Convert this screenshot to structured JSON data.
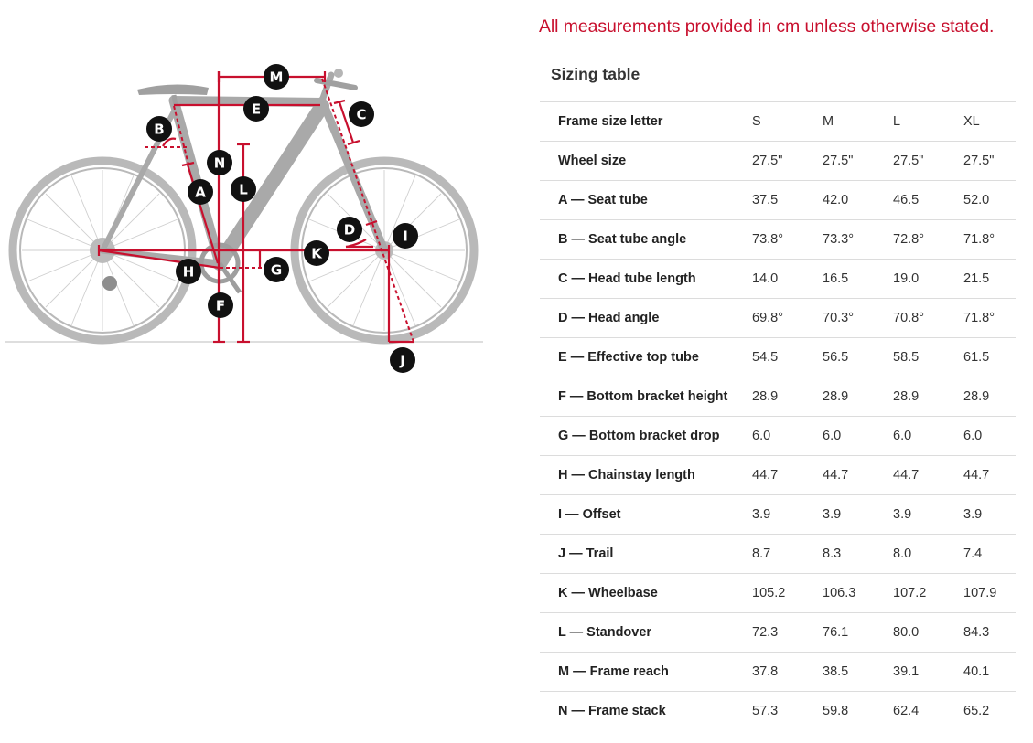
{
  "notice": "All measurements provided in cm unless otherwise stated.",
  "table_title": "Sizing table",
  "columns": [
    "Frame size letter",
    "S",
    "M",
    "L",
    "XL"
  ],
  "rows": [
    {
      "label": "Wheel size",
      "values": [
        "27.5\"",
        "27.5\"",
        "27.5\"",
        "27.5\""
      ]
    },
    {
      "label": "A — Seat tube",
      "values": [
        "37.5",
        "42.0",
        "46.5",
        "52.0"
      ]
    },
    {
      "label": "B — Seat tube angle",
      "values": [
        "73.8°",
        "73.3°",
        "72.8°",
        "71.8°"
      ]
    },
    {
      "label": "C — Head tube length",
      "values": [
        "14.0",
        "16.5",
        "19.0",
        "21.5"
      ]
    },
    {
      "label": "D — Head angle",
      "values": [
        "69.8°",
        "70.3°",
        "70.8°",
        "71.8°"
      ]
    },
    {
      "label": "E — Effective top tube",
      "values": [
        "54.5",
        "56.5",
        "58.5",
        "61.5"
      ]
    },
    {
      "label": "F — Bottom bracket height",
      "values": [
        "28.9",
        "28.9",
        "28.9",
        "28.9"
      ]
    },
    {
      "label": "G — Bottom bracket drop",
      "values": [
        "6.0",
        "6.0",
        "6.0",
        "6.0"
      ]
    },
    {
      "label": "H — Chainstay length",
      "values": [
        "44.7",
        "44.7",
        "44.7",
        "44.7"
      ]
    },
    {
      "label": "I — Offset",
      "values": [
        "3.9",
        "3.9",
        "3.9",
        "3.9"
      ]
    },
    {
      "label": "J — Trail",
      "values": [
        "8.7",
        "8.3",
        "8.0",
        "7.4"
      ]
    },
    {
      "label": "K — Wheelbase",
      "values": [
        "105.2",
        "106.3",
        "107.2",
        "107.9"
      ]
    },
    {
      "label": "L — Standover",
      "values": [
        "72.3",
        "76.1",
        "80.0",
        "84.3"
      ]
    },
    {
      "label": "M — Frame reach",
      "values": [
        "37.8",
        "38.5",
        "39.1",
        "40.1"
      ]
    },
    {
      "label": "N — Frame stack",
      "values": [
        "57.3",
        "59.8",
        "62.4",
        "65.2"
      ]
    }
  ],
  "diagram": {
    "labels": {
      "a": "A",
      "b": "B",
      "c": "C",
      "d": "D",
      "e": "E",
      "f": "F",
      "g": "G",
      "h": "H",
      "i": "I",
      "j": "J",
      "k": "K",
      "l": "L",
      "m": "M",
      "n": "N"
    },
    "accent_color": "#c8102e"
  }
}
